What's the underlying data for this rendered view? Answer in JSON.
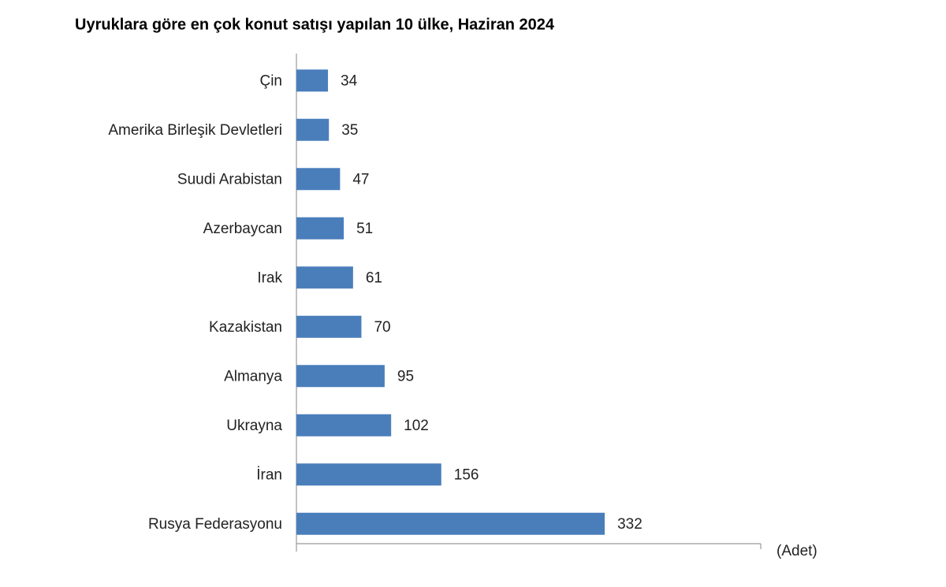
{
  "chart_data": {
    "type": "bar",
    "orientation": "horizontal",
    "title": "Uyruklara göre en çok konut satışı yapılan 10 ülke, Haziran 2024",
    "x_label": "(Adet)",
    "categories": [
      "Çin",
      "Amerika Birleşik Devletleri",
      "Suudi Arabistan",
      "Azerbaycan",
      "Irak",
      "Kazakistan",
      "Almanya",
      "Ukrayna",
      "İran",
      "Rusya Federasyonu"
    ],
    "values": [
      34,
      35,
      47,
      51,
      61,
      70,
      95,
      102,
      156,
      332
    ],
    "color": "#4a7ebb",
    "xlim": [
      0,
      500
    ]
  }
}
